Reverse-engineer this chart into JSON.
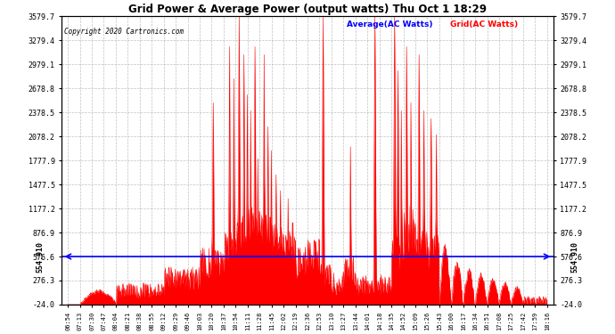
{
  "title": "Grid Power & Average Power (output watts) Thu Oct 1 18:29",
  "copyright": "Copyright 2020 Cartronics.com",
  "legend_avg": "Average(AC Watts)",
  "legend_grid": "Grid(AC Watts)",
  "ylabel_rotated": "554.910",
  "average_value": 576.6,
  "ymin": -24.0,
  "ymax": 3579.7,
  "yticks": [
    -24.0,
    276.3,
    576.6,
    876.9,
    1177.2,
    1477.5,
    1777.9,
    2078.2,
    2378.5,
    2678.8,
    2979.1,
    3279.4,
    3579.7
  ],
  "background_color": "#ffffff",
  "grid_color": "#b0b0b0",
  "fill_color": "#ff0000",
  "line_color": "#ff0000",
  "avg_line_color": "#0000ff",
  "title_color": "#000000",
  "copyright_color": "#000000",
  "x_labels": [
    "06:54",
    "07:13",
    "07:30",
    "07:47",
    "08:04",
    "08:21",
    "08:38",
    "08:55",
    "09:12",
    "09:29",
    "09:46",
    "10:03",
    "10:20",
    "10:37",
    "10:54",
    "11:11",
    "11:28",
    "11:45",
    "12:02",
    "12:19",
    "12:36",
    "12:53",
    "13:10",
    "13:27",
    "13:44",
    "14:01",
    "14:18",
    "14:35",
    "14:52",
    "15:09",
    "15:26",
    "15:43",
    "16:00",
    "16:17",
    "16:34",
    "16:51",
    "17:08",
    "17:25",
    "17:42",
    "17:59",
    "18:16"
  ]
}
